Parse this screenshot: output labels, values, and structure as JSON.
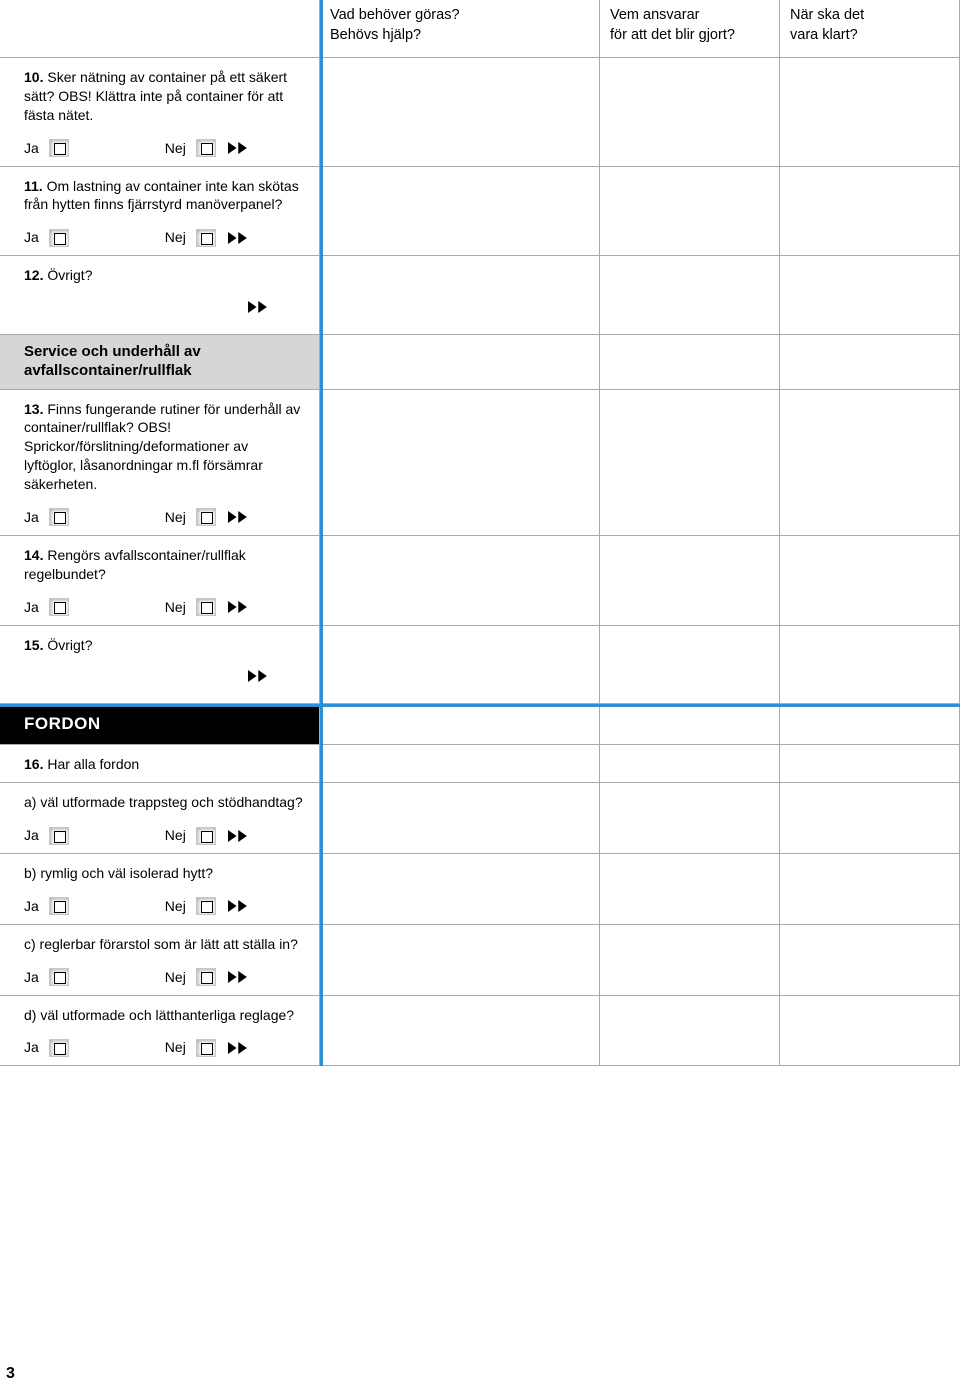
{
  "colors": {
    "blue": "#2d8fd4",
    "grey_section": "#d6d6d6",
    "black_section": "#000000",
    "border": "#aaaaaa"
  },
  "labels": {
    "ja": "Ja",
    "nej": "Nej"
  },
  "headers": {
    "col1": "",
    "col2": "Vad behöver göras?\nBehövs hjälp?",
    "col3": "Vem ansvarar\nför att det blir gjort?",
    "col4": "När ska det\nvara klart?"
  },
  "rows": [
    {
      "type": "question",
      "num": "10.",
      "text": "Sker nätning av container på ett säkert sätt? OBS! Klättra inte på container för att fästa nätet.",
      "yn": true
    },
    {
      "type": "question",
      "num": "11.",
      "text": "Om lastning av container inte kan skötas från hytten finns fjärrstyrd manöverpanel?",
      "yn": true
    },
    {
      "type": "question",
      "num": "12.",
      "text": "Övrigt?",
      "yn": false,
      "arrows_only": true
    },
    {
      "type": "section_grey",
      "text": "Service och underhåll av avfallscontainer/rullflak"
    },
    {
      "type": "question",
      "num": "13.",
      "text": "Finns fungerande rutiner för underhåll av container/rullflak? OBS! Sprickor/förslitning/deformationer av lyftöglor, låsanordningar m.fl försämrar säkerheten.",
      "yn": true
    },
    {
      "type": "question",
      "num": "14.",
      "text": "Rengörs avfallscontainer/rullflak regelbundet?",
      "yn": true
    },
    {
      "type": "question",
      "num": "15.",
      "text": "Övrigt?",
      "yn": false,
      "arrows_only": true
    },
    {
      "type": "blue_hline"
    },
    {
      "type": "section_black",
      "text": "FORDON"
    },
    {
      "type": "question",
      "num": "16.",
      "text": "Har alla fordon",
      "yn": false
    },
    {
      "type": "sub",
      "letter": "a)",
      "text": "väl utformade trappsteg och stödhandtag?",
      "yn": true
    },
    {
      "type": "sub",
      "letter": "b)",
      "text": "rymlig och väl isolerad hytt?",
      "yn": true
    },
    {
      "type": "sub",
      "letter": "c)",
      "text": "reglerbar förarstol som är lätt att ställa in?",
      "yn": true
    },
    {
      "type": "sub",
      "letter": "d)",
      "text": "väl utformade och lätthanterliga reglage?",
      "yn": true
    }
  ],
  "page_number": "3"
}
